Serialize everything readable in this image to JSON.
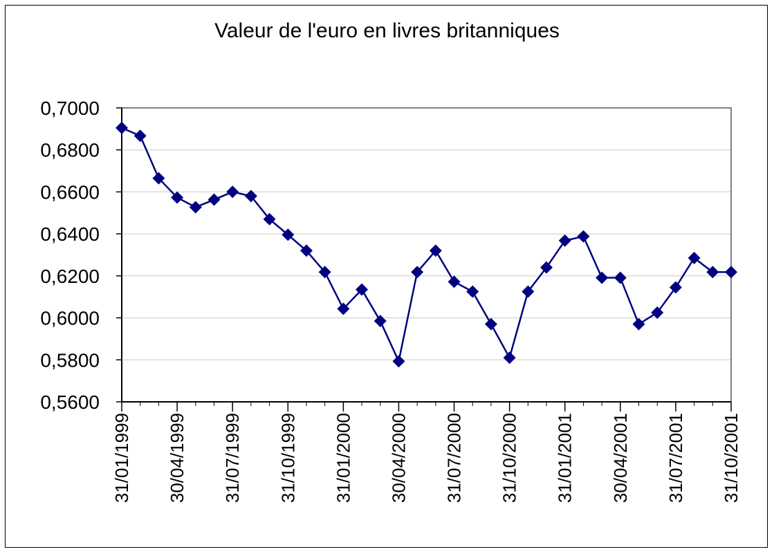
{
  "chart_data": {
    "type": "line",
    "title": "Valeur de l'euro en livres britanniques",
    "xlabel": "",
    "ylabel": "",
    "ylim": [
      0.56,
      0.7
    ],
    "y_ticks": [
      "0,5600",
      "0,5800",
      "0,6000",
      "0,6200",
      "0,6400",
      "0,6600",
      "0,6800",
      "0,7000"
    ],
    "x_tick_labels": [
      "31/01/1999",
      "30/04/1999",
      "31/07/1999",
      "31/10/1999",
      "31/01/2000",
      "30/04/2000",
      "31/07/2000",
      "31/10/2000",
      "31/01/2001",
      "30/04/2001",
      "31/07/2001",
      "31/10/2001"
    ],
    "grid": "horizontal",
    "series": [
      {
        "color": "#000080",
        "marker": "diamond",
        "x": [
          "31/01/1999",
          "28/02/1999",
          "31/03/1999",
          "30/04/1999",
          "31/05/1999",
          "30/06/1999",
          "31/07/1999",
          "31/08/1999",
          "30/09/1999",
          "31/10/1999",
          "30/11/1999",
          "31/12/1999",
          "31/01/2000",
          "29/02/2000",
          "31/03/2000",
          "30/04/2000",
          "31/05/2000",
          "30/06/2000",
          "31/07/2000",
          "31/08/2000",
          "30/09/2000",
          "31/10/2000",
          "30/11/2000",
          "31/12/2000",
          "31/01/2001",
          "28/02/2001",
          "31/03/2001",
          "30/04/2001",
          "31/05/2001",
          "30/06/2001",
          "31/07/2001",
          "31/08/2001",
          "30/09/2001",
          "31/10/2001"
        ],
        "values": [
          0.6905,
          0.6867,
          0.6665,
          0.6573,
          0.6527,
          0.6563,
          0.66,
          0.658,
          0.647,
          0.6396,
          0.632,
          0.6218,
          0.6043,
          0.6135,
          0.5985,
          0.5793,
          0.6218,
          0.632,
          0.6172,
          0.6125,
          0.597,
          0.581,
          0.6125,
          0.624,
          0.6368,
          0.6388,
          0.6191,
          0.6191,
          0.597,
          0.6025,
          0.6145,
          0.6285,
          0.6218,
          0.6218
        ]
      }
    ]
  }
}
